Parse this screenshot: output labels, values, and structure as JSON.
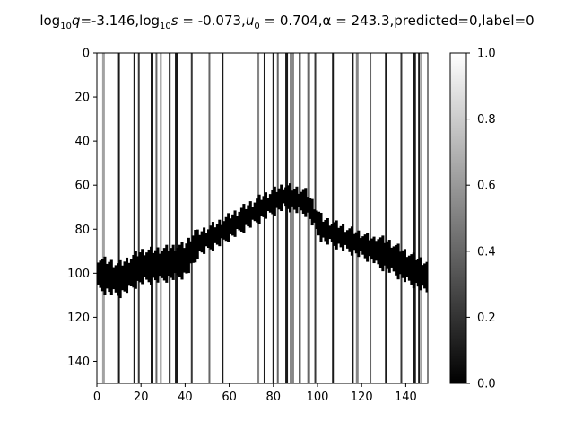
{
  "chart_data": {
    "type": "heatmap",
    "title_parts": {
      "q_prefix": "log",
      "q_sub": "10",
      "q_rest": "q=-3.146,",
      "s_prefix": "log",
      "s_sub": "10",
      "s_rest": "s = -0.073,",
      "u_prefix": "u",
      "u_sub": "0",
      "u_rest": " = 0.704,",
      "alpha_text": "α = 243.3,",
      "tail": "predicted=0,label=0"
    },
    "x_ticks": [
      0,
      20,
      40,
      60,
      80,
      100,
      120,
      140
    ],
    "y_ticks": [
      0,
      20,
      40,
      60,
      80,
      100,
      120,
      140
    ],
    "xlim": [
      0,
      150
    ],
    "ylim": [
      150,
      0
    ],
    "colorbar": {
      "min": 0.0,
      "max": 1.0,
      "ticks": [
        "0.0",
        "0.2",
        "0.4",
        "0.6",
        "0.8",
        "1.0"
      ],
      "cmap": "gray"
    },
    "ridge_center_by_column": [
      [
        0,
        100
      ],
      [
        10,
        103
      ],
      [
        20,
        97
      ],
      [
        30,
        96
      ],
      [
        40,
        94
      ],
      [
        45,
        87
      ],
      [
        55,
        82
      ],
      [
        65,
        76
      ],
      [
        75,
        70
      ],
      [
        85,
        65
      ],
      [
        95,
        68
      ],
      [
        102,
        80
      ],
      [
        112,
        84
      ],
      [
        122,
        88
      ],
      [
        132,
        92
      ],
      [
        142,
        98
      ],
      [
        150,
        102
      ]
    ],
    "vertical_streak_columns": [
      3,
      10,
      17,
      19,
      25,
      27,
      29,
      33,
      36,
      43,
      51,
      57,
      73,
      76,
      80,
      82,
      86,
      88,
      89,
      92,
      96,
      99,
      107,
      116,
      118,
      124,
      131,
      138,
      144,
      146,
      147
    ],
    "colors": {
      "background": "#ffffff",
      "ink": "#000000"
    }
  }
}
